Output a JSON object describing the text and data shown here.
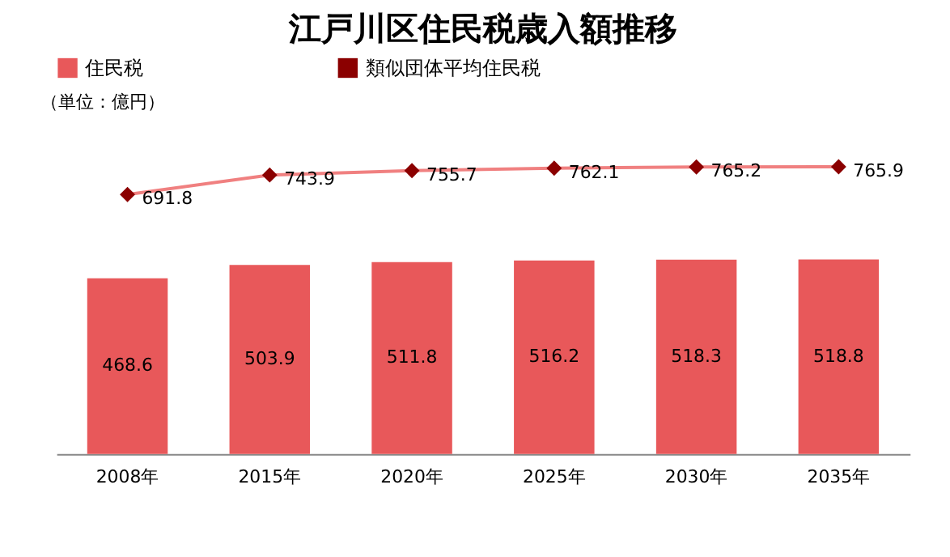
{
  "chart_data": {
    "type": "bar",
    "title": "江戸川区住民税歳入額推移",
    "annotations": [
      "（単位：億円）"
    ],
    "categories": [
      "2008年",
      "2015年",
      "2020年",
      "2025年",
      "2030年",
      "2035年"
    ],
    "series": [
      {
        "name": "住民税",
        "color": "#e8585a",
        "values": [
          468.6,
          503.9,
          511.8,
          516.2,
          518.3,
          518.8
        ]
      },
      {
        "name": "類似団体平均住民税",
        "type": "line",
        "color": "#8b0000",
        "marker": "diamond",
        "values": [
          691.8,
          743.9,
          755.7,
          762.1,
          765.2,
          765.9
        ]
      }
    ],
    "data_labels": true,
    "legend": "top",
    "grid": false
  }
}
